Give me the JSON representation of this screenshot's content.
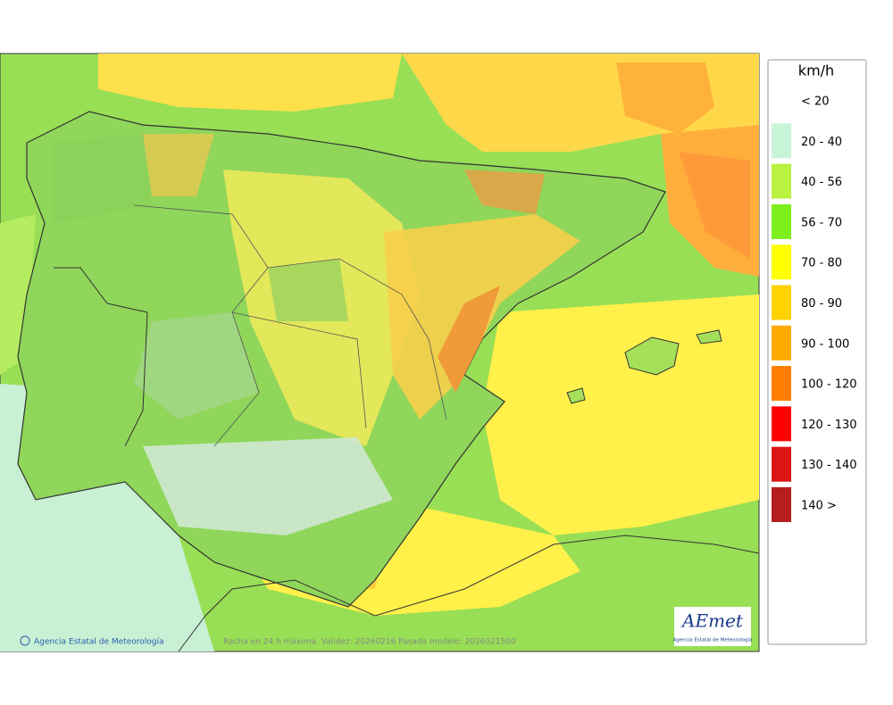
{
  "legend": {
    "unit": "km/h",
    "items": [
      {
        "label": "< 20",
        "color": "#ffffff"
      },
      {
        "label": "20 - 40",
        "color": "#c8f5d8"
      },
      {
        "label": "40 - 56",
        "color": "#b9f23f"
      },
      {
        "label": "56 - 70",
        "color": "#7def1c"
      },
      {
        "label": "70 - 80",
        "color": "#ffff00"
      },
      {
        "label": "80 - 90",
        "color": "#ffd200"
      },
      {
        "label": "90 - 100",
        "color": "#ffaa00"
      },
      {
        "label": "100 - 120",
        "color": "#ff7d00"
      },
      {
        "label": "120 - 130",
        "color": "#ff0000"
      },
      {
        "label": "130 - 140",
        "color": "#dc1414"
      },
      {
        "label": "140 >",
        "color": "#b41e1e"
      }
    ]
  },
  "footer": {
    "credit": "Agencia Estatal de Meteorología",
    "caption": "Racha en 24 h máxima. Validez: 20260216 Pasada modelo: 2026021500"
  },
  "logo": {
    "name": "AEmet",
    "subtitle": "Agencia Estatal de Meteorología"
  }
}
